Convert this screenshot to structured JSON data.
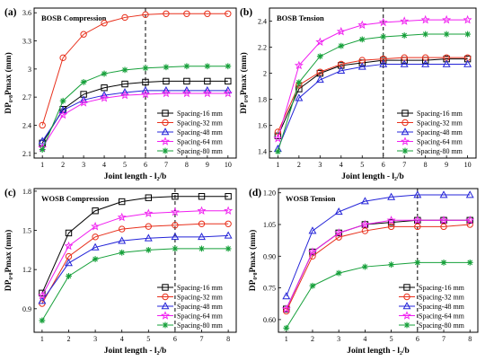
{
  "chart_data": [
    {
      "type": "line",
      "panel": "(a)",
      "title": "BOSB Compression",
      "xlabel": "Joint length - l₂/b",
      "ylabel": "DP₀.₈Pmax (mm)",
      "x": [
        1,
        2,
        3,
        4,
        5,
        6,
        7,
        8,
        9,
        10
      ],
      "xlim": [
        0.6,
        10.4
      ],
      "ylim": [
        2.05,
        3.65
      ],
      "xticks": [
        1,
        2,
        3,
        4,
        5,
        6,
        7,
        8,
        9,
        10
      ],
      "yticks": [
        2.1,
        2.4,
        2.7,
        3.0,
        3.3,
        3.6
      ],
      "vline_x": 6,
      "legend": "bottom-right",
      "series": [
        {
          "name": "Spacing-16 mm",
          "values": [
            2.21,
            2.57,
            2.73,
            2.8,
            2.84,
            2.86,
            2.87,
            2.87,
            2.87,
            2.87
          ]
        },
        {
          "name": "Spacing-32 mm",
          "values": [
            2.4,
            3.12,
            3.37,
            3.49,
            3.55,
            3.58,
            3.59,
            3.59,
            3.59,
            3.59
          ]
        },
        {
          "name": "Spacing-48 mm",
          "values": [
            2.23,
            2.56,
            2.67,
            2.72,
            2.75,
            2.77,
            2.77,
            2.77,
            2.77,
            2.77
          ]
        },
        {
          "name": "Spacing-64 mm",
          "values": [
            2.16,
            2.51,
            2.64,
            2.69,
            2.72,
            2.73,
            2.74,
            2.74,
            2.74,
            2.74
          ]
        },
        {
          "name": "Spacing-80 mm",
          "values": [
            2.14,
            2.66,
            2.86,
            2.95,
            2.99,
            3.01,
            3.02,
            3.03,
            3.03,
            3.03
          ]
        }
      ]
    },
    {
      "type": "line",
      "panel": "(b)",
      "title": "BOSB Tension",
      "xlabel": "Joint length - l₂/b",
      "ylabel": "DP₀.₈Pmax (mm)",
      "x": [
        1,
        2,
        3,
        4,
        5,
        6,
        7,
        8,
        9,
        10
      ],
      "xlim": [
        0.6,
        10.4
      ],
      "ylim": [
        1.35,
        2.5
      ],
      "xticks": [
        1,
        2,
        3,
        4,
        5,
        6,
        7,
        8,
        9,
        10
      ],
      "yticks": [
        1.4,
        1.6,
        1.8,
        2.0,
        2.2,
        2.4
      ],
      "vline_x": 6,
      "legend": "bottom-right",
      "series": [
        {
          "name": "Spacing-16 mm",
          "values": [
            1.52,
            1.88,
            2.0,
            2.06,
            2.08,
            2.1,
            2.1,
            2.1,
            2.11,
            2.11
          ]
        },
        {
          "name": "Spacing-32 mm",
          "values": [
            1.55,
            1.91,
            2.01,
            2.07,
            2.1,
            2.11,
            2.12,
            2.12,
            2.12,
            2.12
          ]
        },
        {
          "name": "Spacing-48 mm",
          "values": [
            1.42,
            1.81,
            1.95,
            2.02,
            2.05,
            2.07,
            2.07,
            2.07,
            2.07,
            2.07
          ]
        },
        {
          "name": "Spacing-64 mm",
          "values": [
            1.5,
            2.06,
            2.24,
            2.32,
            2.37,
            2.39,
            2.4,
            2.41,
            2.41,
            2.41
          ]
        },
        {
          "name": "Spacing-80 mm",
          "values": [
            1.4,
            1.93,
            2.13,
            2.21,
            2.26,
            2.28,
            2.29,
            2.3,
            2.3,
            2.3
          ]
        }
      ]
    },
    {
      "type": "line",
      "panel": "(c)",
      "title": "WOSB Compression",
      "xlabel": "Joint length - l₂/b",
      "ylabel": "DP₀.₈Pmax (mm)",
      "x": [
        1,
        2,
        3,
        4,
        5,
        6,
        7,
        8
      ],
      "xlim": [
        0.7,
        8.3
      ],
      "ylim": [
        0.72,
        1.82
      ],
      "xticks": [
        1,
        2,
        3,
        4,
        5,
        6,
        7,
        8
      ],
      "yticks": [
        0.9,
        1.2,
        1.5,
        1.8
      ],
      "vline_x": 6,
      "legend": "bottom-right",
      "series": [
        {
          "name": "Spacing-16 mm",
          "values": [
            1.02,
            1.48,
            1.65,
            1.72,
            1.75,
            1.76,
            1.76,
            1.76
          ]
        },
        {
          "name": "Spacing-32 mm",
          "values": [
            0.94,
            1.3,
            1.45,
            1.51,
            1.53,
            1.54,
            1.55,
            1.55
          ]
        },
        {
          "name": "Spacing-48 mm",
          "values": [
            0.96,
            1.25,
            1.37,
            1.42,
            1.44,
            1.45,
            1.45,
            1.46
          ]
        },
        {
          "name": "Spacing-64 mm",
          "values": [
            1.0,
            1.38,
            1.53,
            1.6,
            1.63,
            1.64,
            1.65,
            1.65
          ]
        },
        {
          "name": "Spacing-80 mm",
          "values": [
            0.81,
            1.15,
            1.28,
            1.33,
            1.35,
            1.36,
            1.36,
            1.36
          ]
        }
      ]
    },
    {
      "type": "line",
      "panel": "(d)",
      "title": "WOSB Tension",
      "xlabel": "Joint length - l₂/b",
      "ylabel": "DP₀.₈Pmax (mm)",
      "x": [
        1,
        2,
        3,
        4,
        5,
        6,
        7,
        8
      ],
      "xlim": [
        0.7,
        8.3
      ],
      "ylim": [
        0.54,
        1.22
      ],
      "xticks": [
        1,
        2,
        3,
        4,
        5,
        6,
        7,
        8
      ],
      "yticks": [
        0.6,
        0.75,
        0.9,
        1.05,
        1.2
      ],
      "ytick_labels": [
        "0.60",
        "0.75",
        "0.90",
        "1.05",
        "1.20"
      ],
      "vline_x": 6,
      "legend": "bottom-right",
      "series": [
        {
          "name": "Spacing-16 mm",
          "values": [
            0.65,
            0.92,
            1.01,
            1.05,
            1.06,
            1.07,
            1.07,
            1.07
          ]
        },
        {
          "name": "Spacing-32 mm",
          "values": [
            0.64,
            0.9,
            0.99,
            1.02,
            1.04,
            1.04,
            1.04,
            1.05
          ]
        },
        {
          "name": "Spacing-48 mm",
          "values": [
            0.71,
            1.02,
            1.11,
            1.16,
            1.18,
            1.19,
            1.19,
            1.19
          ]
        },
        {
          "name": "Spacing-64 mm",
          "values": [
            0.65,
            0.92,
            1.01,
            1.05,
            1.07,
            1.07,
            1.07,
            1.07
          ]
        },
        {
          "name": "Spacing-80 mm",
          "values": [
            0.56,
            0.76,
            0.82,
            0.85,
            0.86,
            0.87,
            0.87,
            0.87
          ]
        }
      ]
    }
  ],
  "series_styles": [
    {
      "color": "#000000",
      "marker": "square"
    },
    {
      "color": "#e8301c",
      "marker": "circle"
    },
    {
      "color": "#2424d8",
      "marker": "triangle"
    },
    {
      "color": "#f01ef0",
      "marker": "star"
    },
    {
      "color": "#16a03a",
      "marker": "asterisk"
    }
  ]
}
